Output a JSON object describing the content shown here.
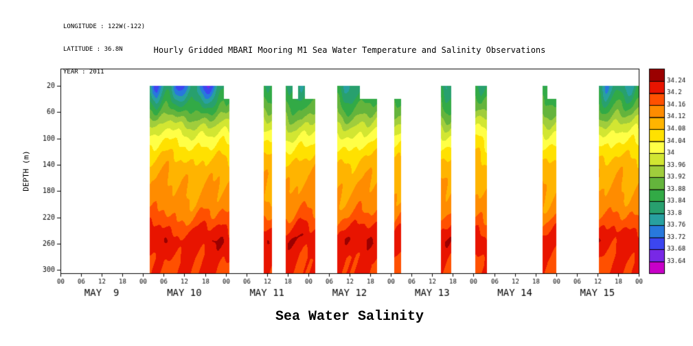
{
  "header": {
    "longitude": "LONGITUDE : 122W(-122)",
    "latitude": "LATITUDE : 36.8N",
    "year": "YEAR : 2011"
  },
  "title": "Hourly Gridded MBARI Mooring M1 Sea Water Temperature and Salinity Observations",
  "footer_title": "Sea Water Salinity",
  "chart_data": {
    "type": "heatmap",
    "title": "Hourly Gridded MBARI Mooring M1 Sea Water Temperature and Salinity Observations",
    "subtitle": "Sea Water Salinity",
    "xlabel": "",
    "ylabel": "DEPTH (m)",
    "time_axis": {
      "range_hours": [
        0,
        168
      ],
      "hour_tick_step": 6,
      "hour_tick_labels": [
        "00",
        "06",
        "12",
        "18"
      ],
      "day_labels": [
        "MAY  9",
        "MAY 10",
        "MAY 11",
        "MAY 12",
        "MAY 13",
        "MAY 14",
        "MAY 15"
      ]
    },
    "depth_axis": {
      "range": [
        -6,
        305
      ],
      "ticks": [
        20,
        60,
        100,
        140,
        180,
        220,
        260,
        300
      ],
      "units": "m"
    },
    "colorbar": {
      "levels": [
        33.64,
        33.68,
        33.72,
        33.76,
        33.8,
        33.84,
        33.88,
        33.92,
        33.96,
        34,
        34.04,
        34.08,
        34.12,
        34.16,
        34.2,
        34.24
      ],
      "tick_labels_top_to_bottom": [
        "34.24",
        "34.2",
        "34.16",
        "34.12",
        "34.08",
        "34.04",
        "34",
        "33.96",
        "33.92",
        "33.88",
        "33.84",
        "33.8",
        "33.76",
        "33.72",
        "33.68",
        "33.64"
      ],
      "colors_low_to_high": [
        "#c800c8",
        "#7828e6",
        "#3c46f0",
        "#2878dc",
        "#28a0a0",
        "#28a06e",
        "#32aa46",
        "#64b43c",
        "#a0cd3c",
        "#d2e632",
        "#ffff46",
        "#ffe100",
        "#ffb400",
        "#ff8c00",
        "#ff5000",
        "#e81400",
        "#9b0000"
      ]
    },
    "gap_color": "#ffffff",
    "base_profile_depth_salinity": [
      [
        -6,
        33.82
      ],
      [
        20,
        33.83
      ],
      [
        40,
        33.87
      ],
      [
        60,
        33.91
      ],
      [
        80,
        33.97
      ],
      [
        100,
        34.02
      ],
      [
        120,
        34.06
      ],
      [
        140,
        34.095
      ],
      [
        160,
        34.115
      ],
      [
        180,
        34.125
      ],
      [
        200,
        34.135
      ],
      [
        220,
        34.165
      ],
      [
        240,
        34.205
      ],
      [
        255,
        34.23
      ],
      [
        270,
        34.215
      ],
      [
        285,
        34.2
      ],
      [
        305,
        34.2
      ]
    ],
    "data_blocks_hours": [
      {
        "start": 26,
        "end": 47.5,
        "top_depth": 20,
        "surface_anomaly": -0.16
      },
      {
        "start": 47.5,
        "end": 49,
        "top_depth": 40,
        "surface_anomaly": -0.05
      },
      {
        "start": 59,
        "end": 61.5,
        "top_depth": 20,
        "surface_anomaly": -0.06
      },
      {
        "start": 65.5,
        "end": 67.5,
        "top_depth": 20,
        "surface_anomaly": -0.05
      },
      {
        "start": 67.5,
        "end": 69,
        "top_depth": 40,
        "surface_anomaly": 0
      },
      {
        "start": 69,
        "end": 71,
        "top_depth": 20,
        "surface_anomaly": -0.05
      },
      {
        "start": 71,
        "end": 74,
        "top_depth": 40,
        "surface_anomaly": 0
      },
      {
        "start": 80.5,
        "end": 87,
        "top_depth": 20,
        "surface_anomaly": -0.07
      },
      {
        "start": 87,
        "end": 92,
        "top_depth": 40,
        "surface_anomaly": 0
      },
      {
        "start": 97,
        "end": 99,
        "top_depth": 40,
        "surface_anomaly": 0
      },
      {
        "start": 110.5,
        "end": 113.5,
        "top_depth": 20,
        "surface_anomaly": -0.05
      },
      {
        "start": 120.5,
        "end": 124,
        "top_depth": 20,
        "surface_anomaly": -0.05
      },
      {
        "start": 140,
        "end": 141.5,
        "top_depth": 20,
        "surface_anomaly": -0.05
      },
      {
        "start": 141.5,
        "end": 144,
        "top_depth": 40,
        "surface_anomaly": 0
      },
      {
        "start": 156.5,
        "end": 168,
        "top_depth": 20,
        "surface_anomaly": -0.08
      }
    ]
  }
}
